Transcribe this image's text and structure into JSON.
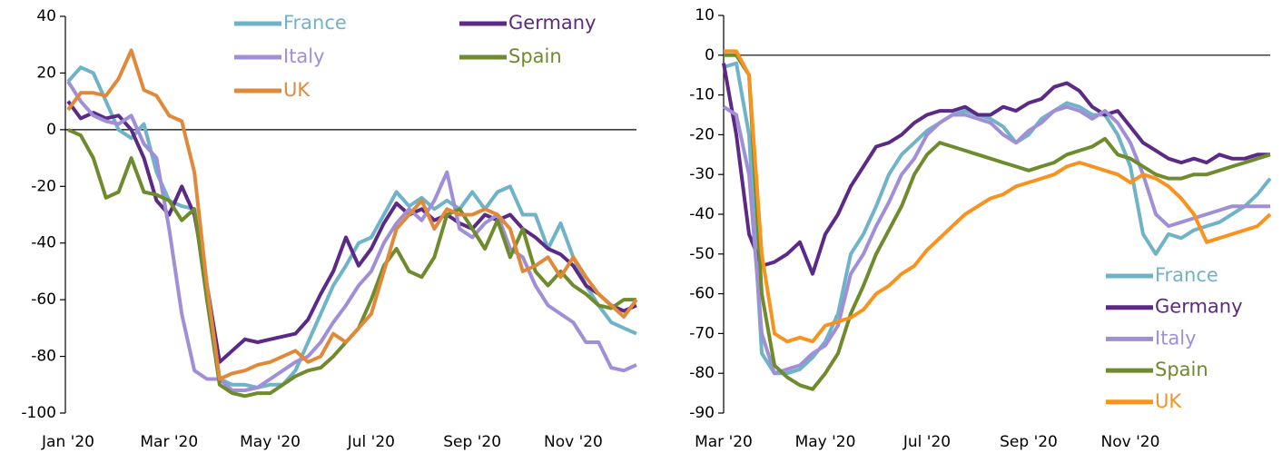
{
  "chart_data": [
    {
      "type": "line",
      "categories": [
        "Jan '20",
        null,
        null,
        null,
        null,
        null,
        null,
        null,
        "Mar '20",
        null,
        null,
        null,
        null,
        null,
        null,
        null,
        "May '20",
        null,
        null,
        null,
        null,
        null,
        null,
        null,
        "Jul '20",
        null,
        null,
        null,
        null,
        null,
        null,
        null,
        "Sep '20",
        null,
        null,
        null,
        null,
        null,
        null,
        null,
        "Nov '20",
        null,
        null,
        null,
        null,
        null
      ],
      "ylim": [
        -100,
        40
      ],
      "yticks": [
        -100,
        -80,
        -60,
        -40,
        -20,
        0,
        20,
        40
      ],
      "legend": "top",
      "series": [
        {
          "name": "France",
          "color": "#6fb3c8",
          "values": [
            17,
            22,
            20,
            10,
            0,
            -3,
            2,
            -15,
            -25,
            -27,
            -28,
            -60,
            -88,
            -90,
            -90,
            -91,
            -90,
            -90,
            -85,
            -75,
            -65,
            -55,
            -48,
            -40,
            -38,
            -30,
            -22,
            -27,
            -24,
            -28,
            -25,
            -28,
            -22,
            -28,
            -22,
            -20,
            -30,
            -30,
            -42,
            -33,
            -45,
            -55,
            -62,
            -68,
            -70,
            -72
          ]
        },
        {
          "name": "Germany",
          "color": "#5b2a86",
          "values": [
            10,
            4,
            6,
            4,
            5,
            0,
            -10,
            -25,
            -30,
            -20,
            -30,
            -55,
            -82,
            -78,
            -74,
            -75,
            -74,
            -73,
            -72,
            -67,
            -58,
            -50,
            -38,
            -48,
            -42,
            -33,
            -26,
            -30,
            -28,
            -32,
            -30,
            -33,
            -35,
            -30,
            -32,
            -30,
            -35,
            -38,
            -42,
            -44,
            -48,
            -55,
            -58,
            -62,
            -64,
            -62
          ]
        },
        {
          "name": "Italy",
          "color": "#a08fd6",
          "values": [
            17,
            10,
            5,
            3,
            2,
            5,
            -5,
            -10,
            -35,
            -65,
            -85,
            -88,
            -88,
            -92,
            -92,
            -91,
            -88,
            -85,
            -82,
            -80,
            -75,
            -68,
            -62,
            -55,
            -50,
            -40,
            -33,
            -28,
            -32,
            -25,
            -15,
            -35,
            -38,
            -33,
            -30,
            -42,
            -45,
            -55,
            -62,
            -65,
            -68,
            -75,
            -75,
            -84,
            -85,
            -83
          ]
        },
        {
          "name": "Spain",
          "color": "#6e8b2e",
          "values": [
            0,
            -2,
            -10,
            -24,
            -22,
            -10,
            -22,
            -23,
            -25,
            -32,
            -28,
            -60,
            -90,
            -93,
            -94,
            -93,
            -93,
            -90,
            -87,
            -85,
            -84,
            -80,
            -75,
            -70,
            -60,
            -48,
            -42,
            -50,
            -52,
            -45,
            -30,
            -28,
            -35,
            -42,
            -32,
            -45,
            -35,
            -50,
            -55,
            -50,
            -55,
            -58,
            -62,
            -63,
            -60,
            -60
          ]
        },
        {
          "name": "UK",
          "color": "#e0893a",
          "values": [
            7,
            13,
            13,
            12,
            18,
            28,
            14,
            12,
            5,
            3,
            -15,
            -55,
            -88,
            -86,
            -85,
            -83,
            -82,
            -80,
            -78,
            -82,
            -80,
            -72,
            -75,
            -70,
            -65,
            -50,
            -35,
            -30,
            -25,
            -35,
            -28,
            -30,
            -30,
            -28,
            -30,
            -35,
            -50,
            -48,
            -45,
            -52,
            -45,
            -52,
            -58,
            -62,
            -66,
            -60
          ]
        }
      ]
    },
    {
      "type": "line",
      "categories": [
        "Mar '20",
        null,
        null,
        null,
        null,
        null,
        null,
        null,
        "May '20",
        null,
        null,
        null,
        null,
        null,
        null,
        null,
        "Jul '20",
        null,
        null,
        null,
        null,
        null,
        null,
        null,
        "Sep '20",
        null,
        null,
        null,
        null,
        null,
        null,
        null,
        "Nov '20",
        null,
        null,
        null,
        null,
        null,
        null,
        null,
        null,
        null,
        null,
        null
      ],
      "ylim": [
        -90,
        10
      ],
      "yticks": [
        -90,
        -80,
        -70,
        -60,
        -50,
        -40,
        -30,
        -20,
        -10,
        0,
        10
      ],
      "legend": "lower right",
      "series": [
        {
          "name": "France",
          "color": "#6fb3c8",
          "values": [
            -3,
            -2,
            -20,
            -75,
            -80,
            -80,
            -79,
            -76,
            -72,
            -65,
            -50,
            -45,
            -38,
            -30,
            -25,
            -22,
            -19,
            -17,
            -15,
            -14,
            -15,
            -16,
            -18,
            -22,
            -20,
            -16,
            -14,
            -12,
            -13,
            -15,
            -15,
            -20,
            -28,
            -45,
            -50,
            -45,
            -46,
            -44,
            -43,
            -42,
            -40,
            -38,
            -35,
            -31
          ]
        },
        {
          "name": "Germany",
          "color": "#5b2a86",
          "values": [
            -2,
            -20,
            -45,
            -53,
            -52,
            -50,
            -47,
            -55,
            -45,
            -40,
            -33,
            -28,
            -23,
            -22,
            -20,
            -17,
            -15,
            -14,
            -14,
            -13,
            -15,
            -15,
            -13,
            -14,
            -12,
            -11,
            -8,
            -7,
            -9,
            -13,
            -15,
            -14,
            -18,
            -22,
            -24,
            -26,
            -27,
            -26,
            -27,
            -25,
            -26,
            -26,
            -25,
            -25
          ]
        },
        {
          "name": "Italy",
          "color": "#a08fd6",
          "values": [
            -13,
            -15,
            -30,
            -70,
            -80,
            -79,
            -78,
            -75,
            -73,
            -68,
            -55,
            -50,
            -43,
            -37,
            -30,
            -26,
            -20,
            -17,
            -15,
            -15,
            -16,
            -17,
            -20,
            -22,
            -19,
            -17,
            -14,
            -13,
            -14,
            -16,
            -14,
            -17,
            -22,
            -30,
            -40,
            -43,
            -42,
            -41,
            -40,
            -39,
            -38,
            -38,
            -38,
            -38
          ]
        },
        {
          "name": "Spain",
          "color": "#6e8b2e",
          "values": [
            0,
            0,
            -5,
            -60,
            -78,
            -81,
            -83,
            -84,
            -80,
            -75,
            -65,
            -58,
            -50,
            -44,
            -38,
            -30,
            -25,
            -22,
            -23,
            -24,
            -25,
            -26,
            -27,
            -28,
            -29,
            -28,
            -27,
            -25,
            -24,
            -23,
            -21,
            -25,
            -26,
            -28,
            -30,
            -31,
            -31,
            -30,
            -30,
            -29,
            -28,
            -27,
            -26,
            -25
          ]
        },
        {
          "name": "UK",
          "color": "#f7931e",
          "values": [
            1,
            1,
            -5,
            -50,
            -70,
            -72,
            -71,
            -72,
            -68,
            -67,
            -66,
            -64,
            -60,
            -58,
            -55,
            -53,
            -49,
            -46,
            -43,
            -40,
            -38,
            -36,
            -35,
            -33,
            -32,
            -31,
            -30,
            -28,
            -27,
            -28,
            -29,
            -30,
            -32,
            -30,
            -31,
            -33,
            -36,
            -40,
            -47,
            -46,
            -45,
            -44,
            -43,
            -40
          ]
        }
      ]
    }
  ]
}
